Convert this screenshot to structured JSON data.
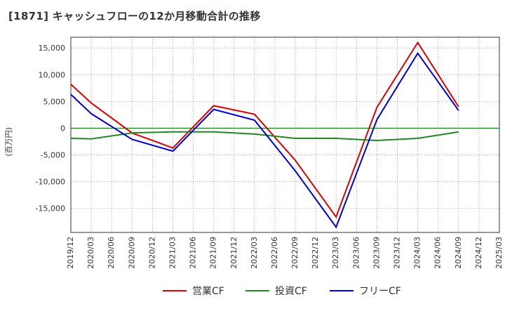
{
  "title": "[1871]  キャッシュフローの12か月移動合計の推移",
  "colors": {
    "operating": "#dd0000",
    "investing": "#228822",
    "free": "#0000dd",
    "zero": "#007700",
    "grid": "#999999",
    "axis": "#333333"
  },
  "chart_data": {
    "type": "line",
    "title": "[1871]  キャッシュフローの12か月移動合計の推移",
    "ylabel": "(百万円)",
    "xlabel": "",
    "ylim": [
      -19500,
      17000
    ],
    "yticks": [
      15000,
      10000,
      5000,
      0,
      -5000,
      -10000,
      -15000
    ],
    "ytick_labels": [
      "15,000",
      "10,000",
      "5,000",
      "0",
      "-5,000",
      "-10,000",
      "-15,000"
    ],
    "categories": [
      "2019/12",
      "2020/03",
      "2020/06",
      "2020/09",
      "2020/12",
      "2021/03",
      "2021/06",
      "2021/09",
      "2021/12",
      "2022/03",
      "2022/06",
      "2022/09",
      "2022/12",
      "2023/03",
      "2023/06",
      "2023/09",
      "2023/12",
      "2024/03",
      "2024/06",
      "2024/09",
      "2024/12",
      "2025/03"
    ],
    "grid": true,
    "legend_position": "bottom",
    "series": [
      {
        "name": "営業CF",
        "key": "operating",
        "values": [
          8200,
          4700,
          null,
          -900,
          null,
          -3700,
          null,
          4200,
          null,
          2600,
          null,
          -6000,
          null,
          -16600,
          null,
          3900,
          null,
          16000,
          null,
          4000,
          null,
          null
        ]
      },
      {
        "name": "投資CF",
        "key": "investing",
        "values": [
          -1900,
          -2000,
          null,
          -900,
          null,
          -700,
          null,
          -700,
          null,
          -1100,
          null,
          -1900,
          null,
          -1900,
          null,
          -2300,
          null,
          -1900,
          null,
          -700,
          null,
          null
        ]
      },
      {
        "name": "フリーCF",
        "key": "free",
        "values": [
          6300,
          2700,
          null,
          -2100,
          null,
          -4300,
          null,
          3500,
          null,
          1500,
          null,
          -8000,
          null,
          -18500,
          null,
          1600,
          null,
          14000,
          null,
          3300,
          null,
          null
        ]
      }
    ]
  }
}
